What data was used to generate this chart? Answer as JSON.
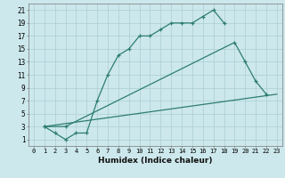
{
  "xlabel": "Humidex (Indice chaleur)",
  "bg_color": "#cce8ec",
  "grid_color": "#aacdd4",
  "line_color": "#2e7d72",
  "xlim": [
    -0.5,
    23.5
  ],
  "ylim": [
    0,
    22
  ],
  "xticks": [
    0,
    1,
    2,
    3,
    4,
    5,
    6,
    7,
    8,
    9,
    10,
    11,
    12,
    13,
    14,
    15,
    16,
    17,
    18,
    19,
    20,
    21,
    22,
    23
  ],
  "yticks": [
    1,
    3,
    5,
    7,
    9,
    11,
    13,
    15,
    17,
    19,
    21
  ],
  "line1_x": [
    1,
    2,
    3,
    4,
    5,
    6,
    7,
    8,
    9,
    10,
    11,
    12,
    13,
    14,
    15,
    16,
    17,
    18
  ],
  "line1_y": [
    3,
    2,
    1,
    2,
    2,
    7,
    11,
    14,
    15,
    17,
    17,
    18,
    19,
    19,
    19,
    20,
    21,
    19
  ],
  "line2_x": [
    1,
    3,
    19,
    20,
    21,
    22
  ],
  "line2_y": [
    3,
    3,
    16,
    13,
    10,
    8
  ],
  "line3_x": [
    1,
    23
  ],
  "line3_y": [
    3,
    8
  ]
}
